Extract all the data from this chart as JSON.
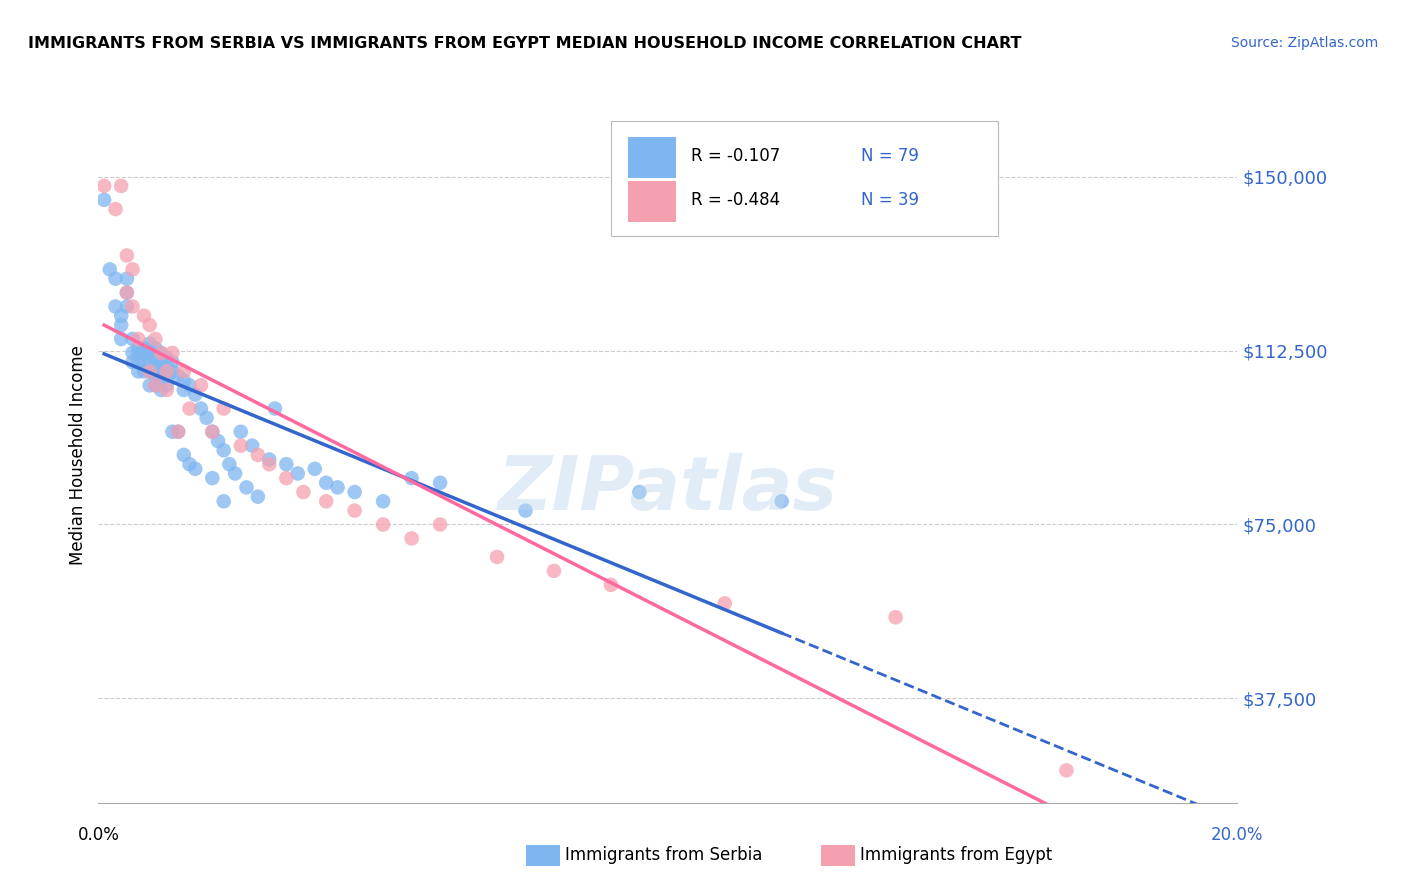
{
  "title": "IMMIGRANTS FROM SERBIA VS IMMIGRANTS FROM EGYPT MEDIAN HOUSEHOLD INCOME CORRELATION CHART",
  "source": "Source: ZipAtlas.com",
  "ylabel": "Median Household Income",
  "yticks": [
    37500,
    75000,
    112500,
    150000
  ],
  "ytick_labels": [
    "$37,500",
    "$75,000",
    "$112,500",
    "$150,000"
  ],
  "xlim": [
    0.0,
    0.2
  ],
  "ylim": [
    15000,
    165000
  ],
  "serbia_color": "#7EB6F0",
  "egypt_color": "#F5A0B0",
  "serbia_R": -0.107,
  "serbia_N": 79,
  "egypt_R": -0.484,
  "egypt_N": 39,
  "serbia_line_color": "#3366CC",
  "egypt_line_color": "#FF69A0",
  "watermark": "ZIPatlas",
  "serbia_x": [
    0.001,
    0.002,
    0.003,
    0.003,
    0.004,
    0.004,
    0.004,
    0.005,
    0.005,
    0.005,
    0.006,
    0.006,
    0.006,
    0.007,
    0.007,
    0.007,
    0.007,
    0.008,
    0.008,
    0.008,
    0.008,
    0.009,
    0.009,
    0.009,
    0.009,
    0.009,
    0.01,
    0.01,
    0.01,
    0.01,
    0.01,
    0.011,
    0.011,
    0.011,
    0.011,
    0.011,
    0.012,
    0.012,
    0.012,
    0.012,
    0.013,
    0.013,
    0.013,
    0.014,
    0.014,
    0.015,
    0.015,
    0.015,
    0.016,
    0.016,
    0.017,
    0.017,
    0.018,
    0.019,
    0.02,
    0.02,
    0.021,
    0.022,
    0.022,
    0.023,
    0.024,
    0.025,
    0.026,
    0.027,
    0.028,
    0.03,
    0.031,
    0.033,
    0.035,
    0.038,
    0.04,
    0.042,
    0.045,
    0.05,
    0.055,
    0.06,
    0.075,
    0.095,
    0.12
  ],
  "serbia_y": [
    145000,
    130000,
    128000,
    122000,
    120000,
    118000,
    115000,
    128000,
    125000,
    122000,
    115000,
    112000,
    110000,
    113000,
    112000,
    110000,
    108000,
    113000,
    112000,
    110000,
    108000,
    114000,
    112000,
    110000,
    108000,
    105000,
    113000,
    111000,
    109000,
    107000,
    105000,
    112000,
    110000,
    108000,
    106000,
    104000,
    111000,
    109000,
    107000,
    105000,
    110000,
    108000,
    95000,
    107000,
    95000,
    106000,
    104000,
    90000,
    105000,
    88000,
    103000,
    87000,
    100000,
    98000,
    95000,
    85000,
    93000,
    91000,
    80000,
    88000,
    86000,
    95000,
    83000,
    92000,
    81000,
    89000,
    100000,
    88000,
    86000,
    87000,
    84000,
    83000,
    82000,
    80000,
    85000,
    84000,
    78000,
    82000,
    80000
  ],
  "egypt_x": [
    0.001,
    0.003,
    0.004,
    0.005,
    0.005,
    0.006,
    0.006,
    0.007,
    0.008,
    0.009,
    0.009,
    0.01,
    0.01,
    0.011,
    0.012,
    0.012,
    0.013,
    0.014,
    0.015,
    0.016,
    0.018,
    0.02,
    0.022,
    0.025,
    0.028,
    0.03,
    0.033,
    0.036,
    0.04,
    0.045,
    0.05,
    0.055,
    0.06,
    0.07,
    0.08,
    0.09,
    0.11,
    0.14,
    0.17
  ],
  "egypt_y": [
    148000,
    143000,
    148000,
    133000,
    125000,
    130000,
    122000,
    115000,
    120000,
    118000,
    108000,
    115000,
    105000,
    112000,
    108000,
    104000,
    112000,
    95000,
    108000,
    100000,
    105000,
    95000,
    100000,
    92000,
    90000,
    88000,
    85000,
    82000,
    80000,
    78000,
    75000,
    72000,
    75000,
    68000,
    65000,
    62000,
    58000,
    55000,
    22000
  ]
}
